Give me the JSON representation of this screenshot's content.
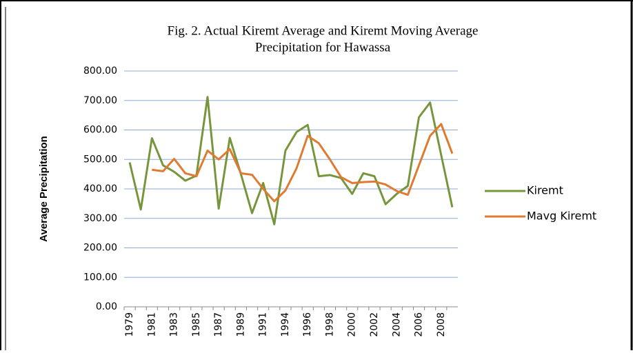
{
  "chart_data": {
    "type": "line",
    "title": "Fig. 2. Actual Kiremt Average and Kiremt Moving Average",
    "subtitle": "Precipitation for Hawassa",
    "y_label": "Average Precipitation",
    "categories": [
      "1979",
      null,
      "1981",
      null,
      "1983",
      null,
      "1985",
      null,
      "1987",
      null,
      "1989",
      null,
      "1991",
      null,
      "1994",
      null,
      "1996",
      null,
      "1998",
      null,
      "2000",
      null,
      "2002",
      null,
      "2004",
      null,
      "2006",
      null,
      "2008",
      null
    ],
    "series": [
      {
        "name": "Kiremt",
        "color": "#77963c",
        "values": [
          490,
          330,
          572,
          480,
          458,
          428,
          445,
          712,
          333,
          573,
          450,
          318,
          420,
          280,
          530,
          593,
          617,
          443,
          447,
          437,
          383,
          453,
          443,
          348,
          383,
          410,
          643,
          693,
          515,
          338
        ]
      },
      {
        "name": "Mavg Kiremt",
        "color": "#e07a30",
        "values": [
          null,
          null,
          465,
          460,
          502,
          453,
          443,
          530,
          500,
          535,
          453,
          448,
          400,
          358,
          395,
          470,
          580,
          555,
          500,
          440,
          420,
          423,
          425,
          415,
          393,
          380,
          480,
          580,
          620,
          520
        ]
      }
    ],
    "ylim": [
      0,
      800
    ],
    "yticks": [
      {
        "value": 0,
        "label": "0.00"
      },
      {
        "value": 100,
        "label": "100.00"
      },
      {
        "value": 200,
        "label": "200.00"
      },
      {
        "value": 300,
        "label": "300.00"
      },
      {
        "value": 400,
        "label": "400.00"
      },
      {
        "value": 500,
        "label": "500.00"
      },
      {
        "value": 600,
        "label": "600.00"
      },
      {
        "value": 700,
        "label": "700.00"
      },
      {
        "value": 800,
        "label": "800.00"
      }
    ],
    "grid": true
  }
}
